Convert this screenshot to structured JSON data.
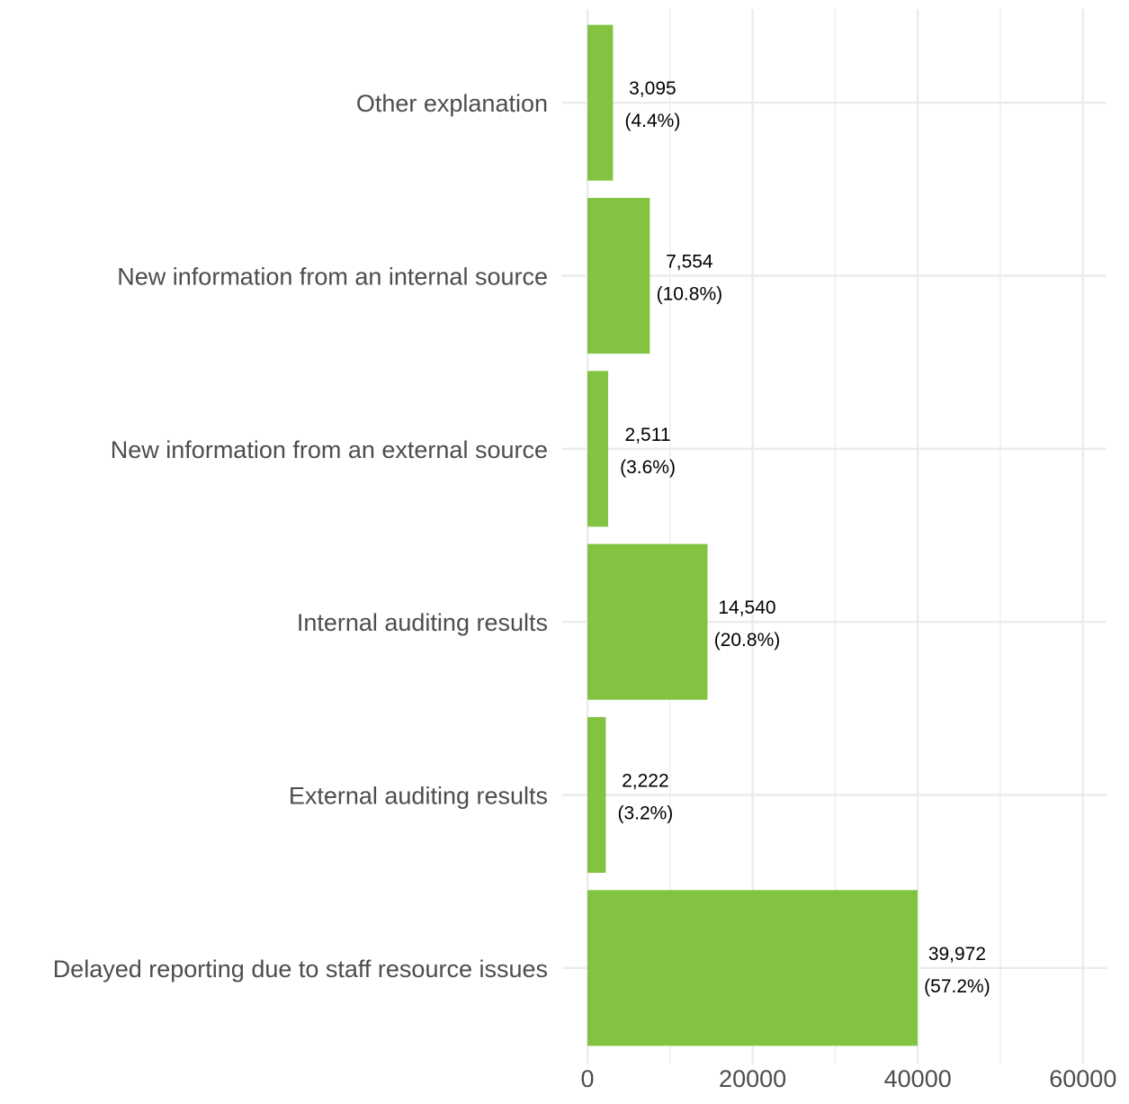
{
  "chart_data": {
    "type": "bar",
    "orientation": "horizontal",
    "categories": [
      "Delayed reporting due to staff resource issues",
      "External auditing results",
      "Internal auditing results",
      "New information from an external source",
      "New information from an internal source",
      "Other explanation"
    ],
    "values": [
      39972,
      2222,
      14540,
      2511,
      7554,
      3095
    ],
    "data_labels": [
      {
        "count": "39,972",
        "percent": "(57.2%)"
      },
      {
        "count": "2,222",
        "percent": "(3.2%)"
      },
      {
        "count": "14,540",
        "percent": "(20.8%)"
      },
      {
        "count": "2,511",
        "percent": "(3.6%)"
      },
      {
        "count": "7,554",
        "percent": "(10.8%)"
      },
      {
        "count": "3,095",
        "percent": "(4.4%)"
      }
    ],
    "x_ticks": [
      "0",
      "20000",
      "40000",
      "60000"
    ],
    "xlim": [
      0,
      62800
    ],
    "title": "",
    "xlabel": "",
    "ylabel": "",
    "grid": true,
    "legend": "none",
    "bar_color": "#82C341"
  }
}
